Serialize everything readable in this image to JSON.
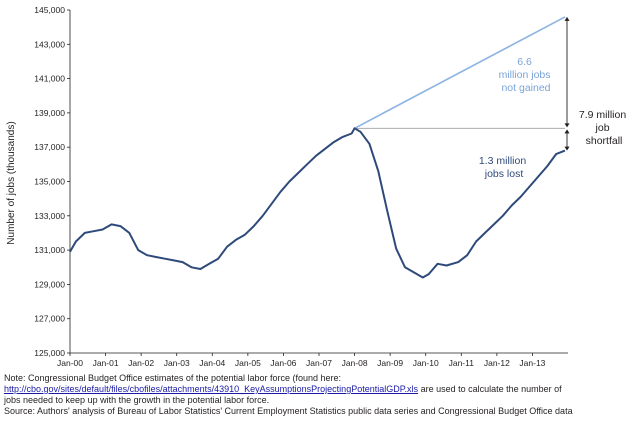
{
  "chart_data": {
    "type": "line",
    "ylabel": "Number of jobs (thousands)",
    "ylim": [
      125000,
      145000
    ],
    "yticks": [
      "125,000",
      "127,000",
      "129,000",
      "131,000",
      "133,000",
      "135,000",
      "137,000",
      "139,000",
      "141,000",
      "143,000",
      "145,000"
    ],
    "xticks": [
      "Jan-00",
      "Jan-01",
      "Jan-02",
      "Jan-03",
      "Jan-04",
      "Jan-05",
      "Jan-06",
      "Jan-07",
      "Jan-08",
      "Jan-09",
      "Jan-10",
      "Jan-11",
      "Jan-12",
      "Jan-13"
    ],
    "colors": {
      "actual": "#2e4a7a",
      "potential": "#8db4e2",
      "baseline": "#9e9e9e"
    },
    "series": [
      {
        "key": "actual",
        "x": [
          "2000-01",
          "2000-03",
          "2000-06",
          "2000-09",
          "2000-12",
          "2001-03",
          "2001-06",
          "2001-09",
          "2001-12",
          "2002-03",
          "2002-06",
          "2002-09",
          "2002-12",
          "2003-03",
          "2003-06",
          "2003-09",
          "2003-12",
          "2004-03",
          "2004-06",
          "2004-09",
          "2004-12",
          "2005-03",
          "2005-06",
          "2005-09",
          "2005-12",
          "2006-03",
          "2006-06",
          "2006-09",
          "2006-12",
          "2007-03",
          "2007-06",
          "2007-09",
          "2007-12",
          "2008-01",
          "2008-03",
          "2008-06",
          "2008-09",
          "2008-12",
          "2009-03",
          "2009-06",
          "2009-09",
          "2009-12",
          "2010-02",
          "2010-05",
          "2010-08",
          "2010-12",
          "2011-03",
          "2011-06",
          "2011-09",
          "2011-12",
          "2012-03",
          "2012-06",
          "2012-09",
          "2012-12",
          "2013-03",
          "2013-06",
          "2013-09",
          "2013-12"
        ],
        "values": [
          130900,
          131500,
          132000,
          132100,
          132200,
          132500,
          132400,
          132000,
          131000,
          130700,
          130600,
          130500,
          130400,
          130300,
          130000,
          129900,
          130200,
          130500,
          131200,
          131600,
          131900,
          132400,
          133000,
          133700,
          134400,
          135000,
          135500,
          136000,
          136500,
          136900,
          137300,
          137600,
          137800,
          138100,
          137900,
          137200,
          135600,
          133300,
          131100,
          130000,
          129700,
          129400,
          129600,
          130200,
          130100,
          130300,
          130700,
          131500,
          132000,
          132500,
          133000,
          133600,
          134100,
          134700,
          135300,
          135900,
          136600,
          136800
        ]
      },
      {
        "key": "potential",
        "x": [
          "2008-01",
          "2013-12"
        ],
        "values": [
          138100,
          144600
        ]
      }
    ],
    "baseline_value": 138100,
    "annotations": {
      "not_gained": [
        "6.6",
        "million jobs",
        "not gained"
      ],
      "lost": [
        "1.3 million",
        "jobs lost"
      ],
      "shortfall": [
        "7.9 million",
        "job",
        "shortfall"
      ]
    }
  },
  "notes": {
    "line1": "Note: Congressional Budget Office estimates of the potential labor force (found here:",
    "url": "http://cbo.gov/sites/default/files/cbofiles/attachments/43910_KeyAssumptionsProjectingPotentialGDP.xls",
    "line2_rest": " are used to calculate the number of",
    "line3": "jobs needed to keep up with the growth in the potential labor force.",
    "line4": "Source: Authors' analysis of Bureau of Labor Statistics' Current Employment Statistics public data series and Congressional Budget Office data"
  }
}
